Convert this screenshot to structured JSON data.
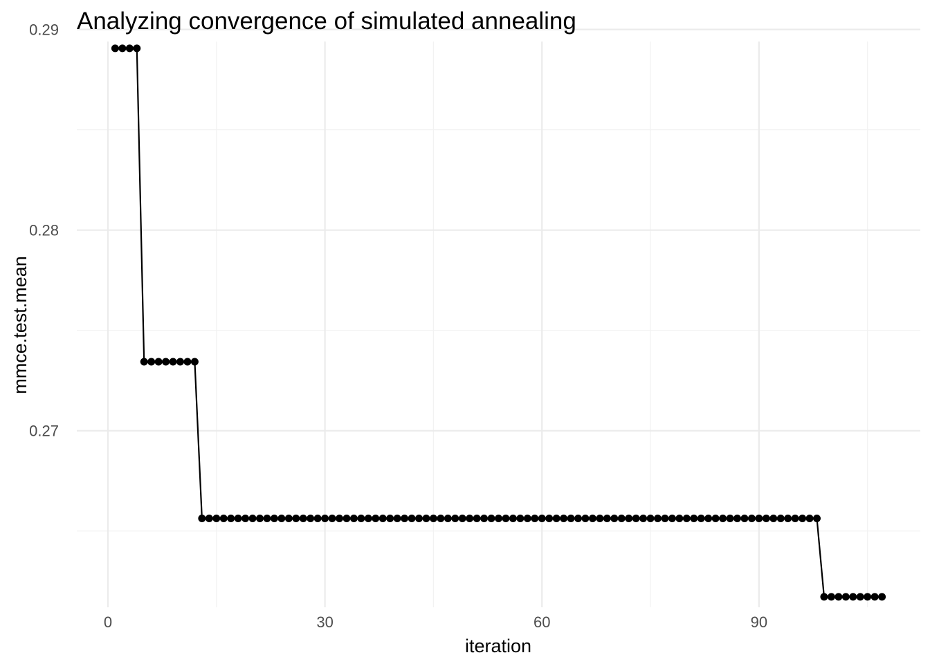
{
  "chart_data": {
    "type": "line",
    "title": "Analyzing convergence of simulated annealing",
    "xlabel": "iteration",
    "ylabel": "mmce.test.mean",
    "xlim": [
      -4.3,
      112.3
    ],
    "ylim": [
      0.2612,
      0.2894
    ],
    "x_ticks": [
      0,
      30,
      60,
      90
    ],
    "x_tick_labels": [
      "0",
      "30",
      "60",
      "90"
    ],
    "y_ticks": [
      0.27,
      0.28,
      0.29
    ],
    "y_tick_labels": [
      "0.27",
      "0.28",
      "0.29"
    ],
    "grid": true,
    "marker": "point",
    "colors": {
      "line": "#000000",
      "grid_major": "#ebebeb",
      "grid_minor": "#f2f2f2"
    },
    "segments": [
      {
        "x_start": 1,
        "x_end": 4,
        "y": 0.28906
      },
      {
        "x_start": 5,
        "x_end": 12,
        "y": 0.27344
      },
      {
        "x_start": 13,
        "x_end": 98,
        "y": 0.26563
      },
      {
        "x_start": 99,
        "x_end": 107,
        "y": 0.26172
      }
    ]
  }
}
